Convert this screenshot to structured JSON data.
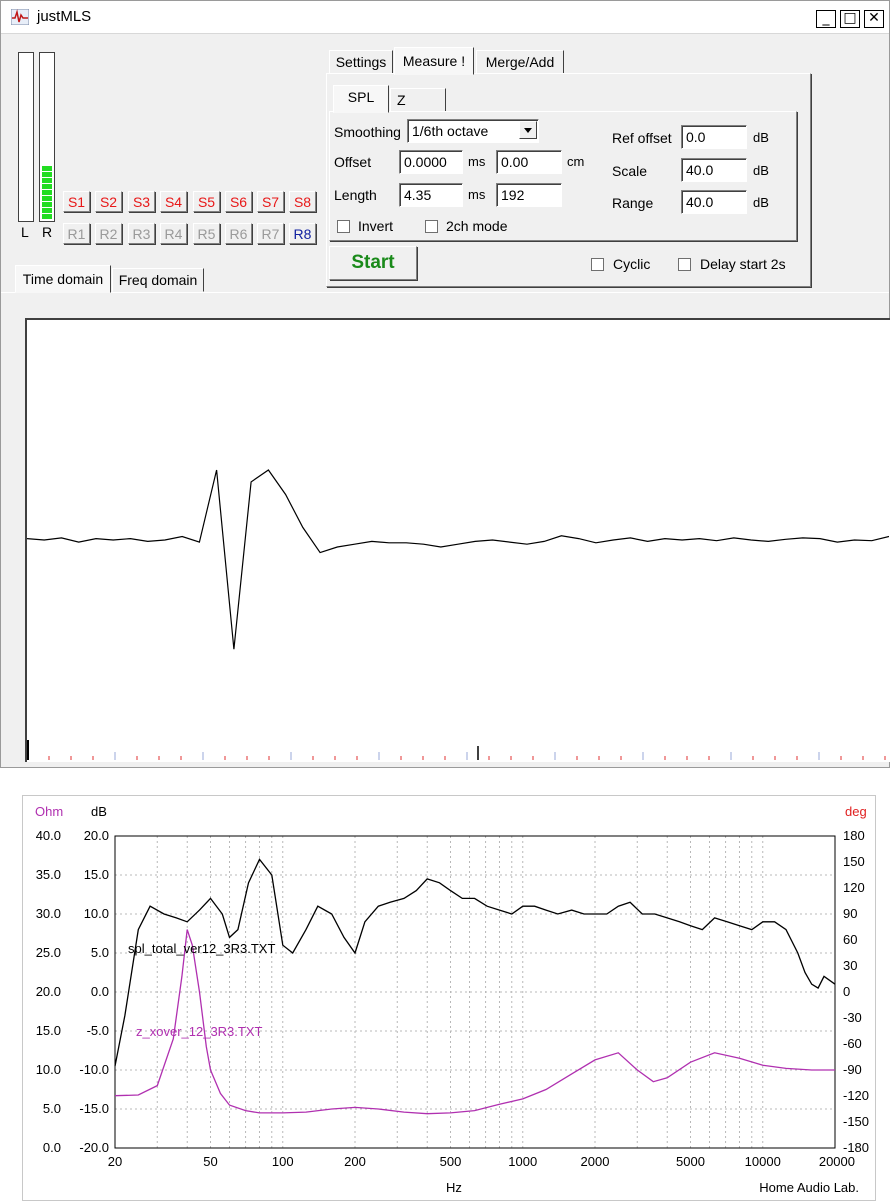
{
  "window": {
    "title": "justMLS",
    "icons": {
      "app": "waveform-app-icon",
      "minimize": "minimize-icon",
      "maximize": "maximize-icon",
      "close": "close-icon"
    },
    "controls": {
      "minimize": "_",
      "maximize": "□",
      "close": "✕"
    }
  },
  "meters": {
    "left_label": "L",
    "right_label": "R",
    "left_level": 0.0,
    "right_level": 0.37,
    "right_segments": 9
  },
  "store_buttons": [
    "S1",
    "S2",
    "S3",
    "S4",
    "S5",
    "S6",
    "S7",
    "S8"
  ],
  "recall_buttons": [
    "R1",
    "R2",
    "R3",
    "R4",
    "R5",
    "R6",
    "R7",
    "R8"
  ],
  "main_tabs": [
    "Settings",
    "Measure !",
    "Merge/Add"
  ],
  "main_tab_active": "Measure !",
  "sub_tabs": [
    "SPL",
    "Z"
  ],
  "sub_tab_active": "SPL",
  "measure": {
    "smoothing_label": "Smoothing",
    "smoothing_value": "1/6th octave",
    "offset_label": "Offset",
    "offset_ms": "0.0000",
    "offset_ms_unit": "ms",
    "offset_cm": "0.00",
    "offset_cm_unit": "cm",
    "length_label": "Length",
    "length_ms": "4.35",
    "length_ms_unit": "ms",
    "length_samples": "192",
    "invert_label": "Invert",
    "invert_checked": false,
    "twoch_label": "2ch mode",
    "twoch_checked": false,
    "ref_offset_label": "Ref offset",
    "ref_offset_value": "0.0",
    "ref_offset_unit": "dB",
    "scale_label": "Scale",
    "scale_value": "40.0",
    "scale_unit": "dB",
    "range_label": "Range",
    "range_value": "40.0",
    "range_unit": "dB"
  },
  "start_button": "Start",
  "cyclic_label": "Cyclic",
  "cyclic_checked": false,
  "delay_label": "Delay start 2s",
  "delay_checked": false,
  "domain_tabs": [
    "Time domain",
    "Freq domain"
  ],
  "domain_tab_active": "Time domain",
  "chart_data": [
    {
      "type": "line",
      "title": "",
      "xlabel": "",
      "ylabel": "",
      "series": [
        {
          "x": [
            0,
            1,
            2,
            3,
            4,
            5,
            6,
            7,
            8,
            9,
            10,
            11,
            12,
            13,
            14,
            15,
            16,
            17,
            18,
            19,
            20,
            21,
            22,
            23,
            24,
            25,
            26,
            27,
            28,
            29,
            30,
            31,
            32,
            33,
            34,
            35,
            36,
            37,
            38,
            39,
            40,
            41,
            42,
            43,
            44,
            45,
            46,
            47,
            48,
            49,
            50
          ],
          "values": [
            0.02,
            0.0,
            0.03,
            -0.03,
            0.02,
            0.0,
            0.02,
            -0.02,
            0.0,
            0.05,
            -0.03,
            1.0,
            -1.56,
            0.83,
            1.0,
            0.65,
            0.18,
            -0.18,
            -0.1,
            -0.06,
            -0.02,
            -0.04,
            -0.04,
            -0.06,
            -0.1,
            -0.06,
            -0.02,
            0.0,
            -0.03,
            -0.06,
            -0.02,
            0.06,
            0.02,
            -0.04,
            0.0,
            0.03,
            -0.02,
            0.02,
            0.0,
            0.02,
            -0.01,
            0.03,
            0.0,
            -0.02,
            0.01,
            0.03,
            0.02,
            -0.03,
            0.0,
            -0.01,
            0.05
          ]
        }
      ]
    },
    {
      "type": "line",
      "title": "",
      "xlabel": "Hz",
      "xscale": "log",
      "xlim": [
        20,
        20000
      ],
      "x_ticks": [
        "20",
        "50",
        "100",
        "200",
        "500",
        "1000",
        "2000",
        "5000",
        "10000",
        "20000"
      ],
      "y_left_ohm_label": "Ohm",
      "y_left_ohm_ticks": [
        "40.0",
        "35.0",
        "30.0",
        "25.0",
        "20.0",
        "15.0",
        "10.0",
        "5.0",
        "0.0"
      ],
      "y_left_db_label": "dB",
      "y_left_db_ticks": [
        "20.0",
        "15.0",
        "10.0",
        "5.0",
        "0.0",
        "-5.0",
        "-10.0",
        "-15.0",
        "-20.0"
      ],
      "y_right_label": "deg",
      "y_right_ticks": [
        "180",
        "150",
        "120",
        "90",
        "60",
        "30",
        "0",
        "-30",
        "-60",
        "-90",
        "-120",
        "-150",
        "-180"
      ],
      "ylim_db": [
        -20,
        20
      ],
      "ylim_ohm": [
        0,
        40
      ],
      "grid": true,
      "footer": "Home Audio Lab.",
      "series": [
        {
          "name": "spl_total_ver12_3R3.TXT",
          "axis": "dB",
          "color": "#000000",
          "x": [
            20,
            22,
            25,
            28,
            32,
            36,
            40,
            45,
            50,
            56,
            60,
            65,
            72,
            80,
            90,
            100,
            110,
            125,
            140,
            160,
            180,
            200,
            220,
            250,
            280,
            320,
            360,
            400,
            450,
            500,
            560,
            630,
            710,
            800,
            900,
            1000,
            1120,
            1250,
            1400,
            1600,
            1800,
            2000,
            2240,
            2500,
            2800,
            3150,
            3550,
            4000,
            4500,
            5000,
            5600,
            6300,
            7100,
            8000,
            9000,
            10000,
            11200,
            12500,
            14000,
            15000,
            16000,
            17000,
            18000,
            20000
          ],
          "values": [
            -9.5,
            -3,
            8,
            11,
            10,
            9.5,
            9,
            10.5,
            12,
            10,
            7,
            8,
            14,
            17,
            15,
            6,
            5,
            8,
            11,
            10,
            7,
            5,
            9,
            11,
            11.5,
            12,
            13,
            14.5,
            14,
            13,
            12,
            12,
            11,
            10.5,
            10,
            11,
            11,
            10.5,
            10,
            10.5,
            10,
            10,
            10,
            11,
            11.5,
            10,
            10,
            9.5,
            9,
            8.5,
            8,
            9.5,
            9,
            8.5,
            8,
            9,
            9,
            8,
            5,
            2.5,
            1,
            0.5,
            2,
            1
          ]
        },
        {
          "name": "z_xover_12_3R3.TXT",
          "axis": "Ohm",
          "color": "#b030b0",
          "x": [
            20,
            25,
            30,
            35,
            38,
            40,
            42,
            45,
            48,
            50,
            55,
            60,
            70,
            80,
            100,
            125,
            160,
            200,
            250,
            320,
            400,
            500,
            630,
            800,
            1000,
            1250,
            1600,
            2000,
            2500,
            3000,
            3500,
            4000,
            5000,
            6300,
            8000,
            10000,
            12500,
            16000,
            20000
          ],
          "values": [
            6.7,
            6.8,
            8.0,
            14.0,
            22.0,
            28.0,
            26.0,
            20.0,
            13.0,
            10.0,
            7.0,
            5.5,
            4.8,
            4.5,
            4.5,
            4.6,
            5.0,
            5.2,
            5.0,
            4.6,
            4.4,
            4.5,
            4.8,
            5.6,
            6.3,
            7.5,
            9.5,
            11.3,
            12.2,
            10.0,
            8.5,
            9.0,
            11.0,
            12.2,
            11.5,
            10.6,
            10.2,
            10.0,
            10.0
          ]
        }
      ]
    }
  ]
}
